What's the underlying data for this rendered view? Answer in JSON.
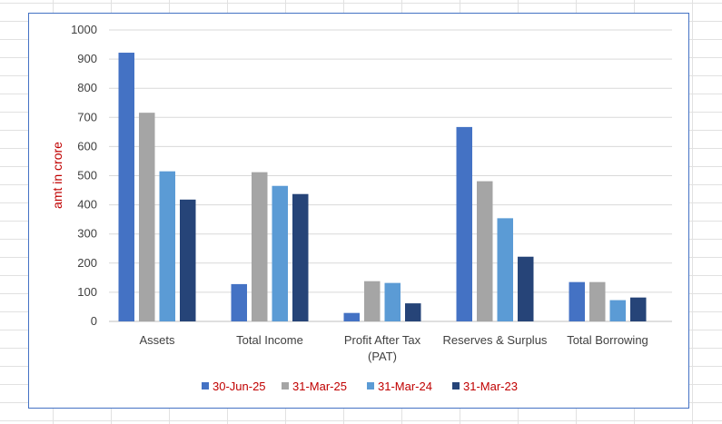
{
  "chart_data": {
    "type": "bar",
    "title": "",
    "xlabel": "",
    "ylabel": "amt in crore",
    "ylim": [
      0,
      1000
    ],
    "yticks": [
      0,
      100,
      200,
      300,
      400,
      500,
      600,
      700,
      800,
      900,
      1000
    ],
    "grid": true,
    "legend_position": "bottom",
    "categories": [
      "Assets",
      "Total Income",
      [
        "Profit After Tax",
        "(PAT)"
      ],
      "Reserves & Surplus",
      "Total Borrowing"
    ],
    "series": [
      {
        "name": "30-Jun-25",
        "color": "#4472c4",
        "values": [
          922,
          128,
          29,
          667,
          135
        ]
      },
      {
        "name": "31-Mar-25",
        "color": "#a5a5a5",
        "values": [
          716,
          512,
          138,
          481,
          135
        ]
      },
      {
        "name": "31-Mar-24",
        "color": "#5b9bd5",
        "values": [
          515,
          465,
          132,
          354,
          73
        ]
      },
      {
        "name": "31-Mar-23",
        "color": "#264478",
        "values": [
          418,
          437,
          62,
          222,
          82
        ]
      }
    ]
  }
}
